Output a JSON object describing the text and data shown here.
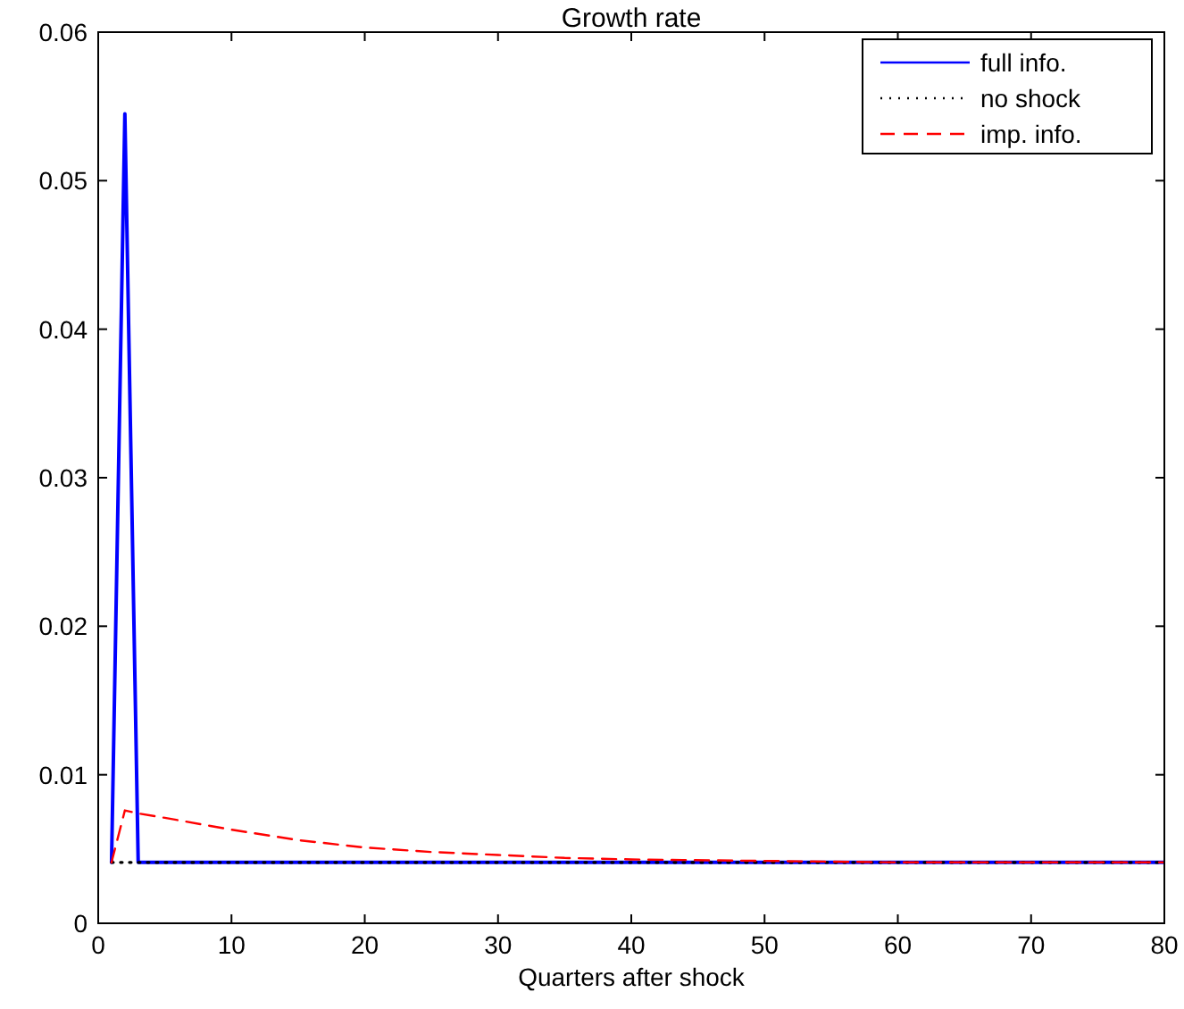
{
  "chart_data": {
    "type": "line",
    "title": "Growth rate",
    "xlabel": "Quarters after shock",
    "xlim": [
      0,
      80
    ],
    "ylim": [
      0,
      0.06
    ],
    "xticks": [
      0,
      10,
      20,
      30,
      40,
      50,
      60,
      70,
      80
    ],
    "yticks": [
      0,
      0.01,
      0.02,
      0.03,
      0.04,
      0.05,
      0.06
    ],
    "grid": false,
    "legend": "top right",
    "series": [
      {
        "name": "full info.",
        "color": "#0000ff",
        "line_style": "solid",
        "x": [
          1,
          2,
          3,
          80
        ],
        "values": [
          0.0041,
          0.0545,
          0.0041,
          0.0041
        ]
      },
      {
        "name": "no shock",
        "color": "#000000",
        "line_style": "dotted",
        "x": [
          1,
          80
        ],
        "values": [
          0.0041,
          0.0041
        ]
      },
      {
        "name": "imp. info.",
        "color": "#ff0000",
        "line_style": "dashed",
        "x": [
          1,
          2,
          3,
          5,
          10,
          15,
          20,
          25,
          30,
          35,
          40,
          50,
          60,
          80
        ],
        "values": [
          0.0041,
          0.0076,
          0.0074,
          0.0071,
          0.0063,
          0.0056,
          0.0051,
          0.0048,
          0.0046,
          0.0044,
          0.0043,
          0.0042,
          0.0041,
          0.0041
        ]
      }
    ]
  }
}
